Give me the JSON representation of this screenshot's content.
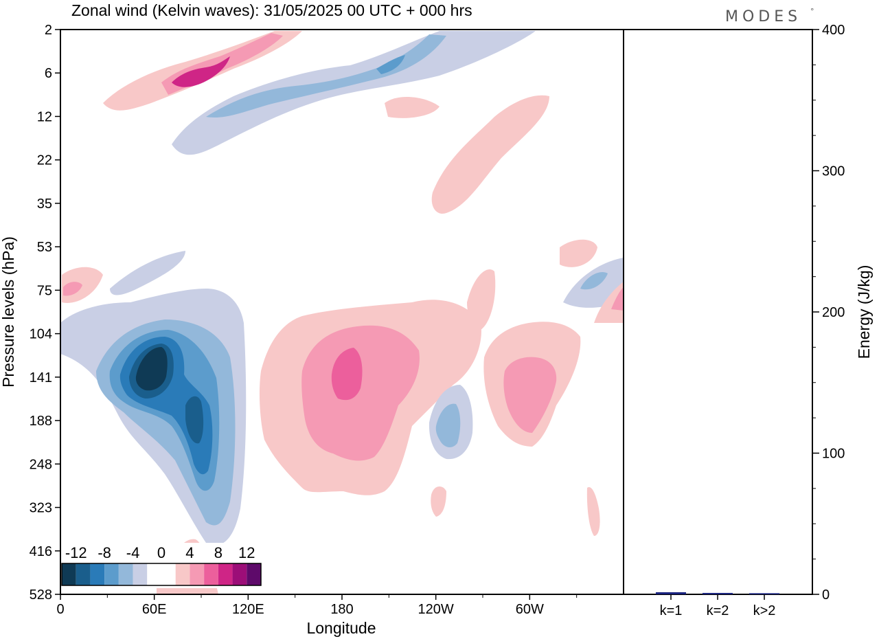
{
  "chart_data": {
    "type": "heatmap",
    "title": "Zonal wind (Kelvin waves):  31/05/2025  00 UTC  + 000 hrs",
    "xlabel": "Longitude",
    "ylabel": "Pressure levels (hPa)",
    "x_ticks": [
      "0",
      "60E",
      "120E",
      "180",
      "120W",
      "60W"
    ],
    "x_tick_degrees": [
      0,
      60,
      120,
      180,
      240,
      300
    ],
    "xlim": [
      0,
      360
    ],
    "y_ticks": [
      "2",
      "6",
      "12",
      "22",
      "35",
      "53",
      "75",
      "104",
      "141",
      "188",
      "248",
      "323",
      "416",
      "528"
    ],
    "colorbar": {
      "tick_labels": [
        "-12",
        "-8",
        "-4",
        "0",
        "4",
        "8",
        "12"
      ],
      "levels": [
        -16,
        -14,
        -12,
        -10,
        -8,
        -6,
        -4,
        -2,
        2,
        4,
        6,
        8,
        10,
        12,
        14
      ],
      "colors": [
        "#0f3a55",
        "#1a5e8c",
        "#2a7bb8",
        "#5c9ccc",
        "#93b8da",
        "#c9cfe5",
        "#ffffff",
        "#ffffff",
        "#f8c8c8",
        "#f59ab4",
        "#ec5f9c",
        "#cf2586",
        "#9c0e78",
        "#5e0a6a"
      ]
    },
    "features": [
      {
        "type": "negative",
        "center_lon": 60,
        "center_level": "141",
        "peak": -14
      },
      {
        "type": "negative",
        "center_lon": 85,
        "center_level": "188",
        "peak": -10
      },
      {
        "type": "positive",
        "center_lon": 185,
        "center_level": "141",
        "peak": 6
      },
      {
        "type": "positive",
        "center_lon": 300,
        "center_level": "141",
        "peak": 4
      },
      {
        "type": "positive",
        "center_lon": 80,
        "center_level": "6",
        "peak": 8
      },
      {
        "type": "negative",
        "center_lon": 210,
        "center_level": "6",
        "peak": -6
      }
    ],
    "side_panel": {
      "type": "bar",
      "ylabel": "Energy (J/kg)",
      "ylim": [
        0,
        400
      ],
      "y_ticks": [
        "0",
        "100",
        "200",
        "300",
        "400"
      ],
      "categories": [
        "k=1",
        "k=2",
        "k>2"
      ],
      "values": [
        1.5,
        1.0,
        0.8
      ],
      "bar_color": "#1a237e"
    }
  },
  "logo": {
    "text": "MODES",
    "mark": "°"
  }
}
